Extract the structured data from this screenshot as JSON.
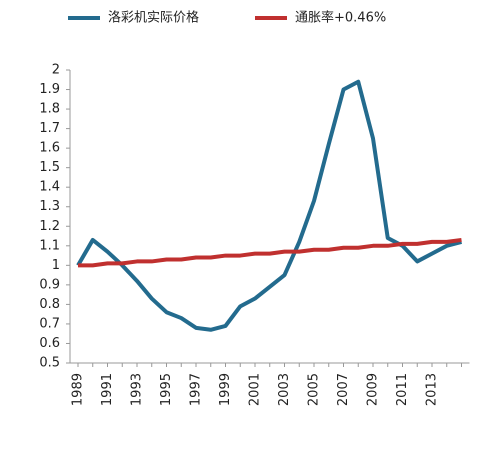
{
  "chart_data": {
    "type": "line",
    "categories": [
      "1989",
      null,
      "1991",
      null,
      "1993",
      null,
      "1995",
      null,
      "1997",
      null,
      "1999",
      null,
      "2001",
      null,
      "2003",
      null,
      "2005",
      null,
      "2007",
      null,
      "2009",
      null,
      "2011",
      null,
      "2013",
      null,
      null
    ],
    "series": [
      {
        "name": "洛彩机实际价格",
        "color": "#236b8e",
        "values": [
          1.0,
          1.13,
          1.07,
          1.0,
          0.92,
          0.83,
          0.76,
          0.73,
          0.68,
          0.67,
          0.69,
          0.79,
          0.83,
          0.89,
          0.95,
          1.12,
          1.33,
          1.62,
          1.9,
          1.94,
          1.65,
          1.14,
          1.1,
          1.02,
          1.06,
          1.1,
          1.12
        ]
      },
      {
        "name": "通胀率+0.46%",
        "color": "#c0302f",
        "values": [
          1.0,
          1.0,
          1.01,
          1.01,
          1.02,
          1.02,
          1.03,
          1.03,
          1.04,
          1.04,
          1.05,
          1.05,
          1.06,
          1.06,
          1.07,
          1.07,
          1.08,
          1.08,
          1.09,
          1.09,
          1.1,
          1.1,
          1.11,
          1.11,
          1.12,
          1.12,
          1.13
        ]
      }
    ],
    "ylim": [
      0.5,
      2
    ],
    "yticks": [
      0.5,
      0.6,
      0.7,
      0.8,
      0.9,
      1,
      1.1,
      1.2,
      1.3,
      1.4,
      1.5,
      1.6,
      1.7,
      1.8,
      1.9,
      2
    ],
    "grid": false,
    "legend": "top"
  }
}
